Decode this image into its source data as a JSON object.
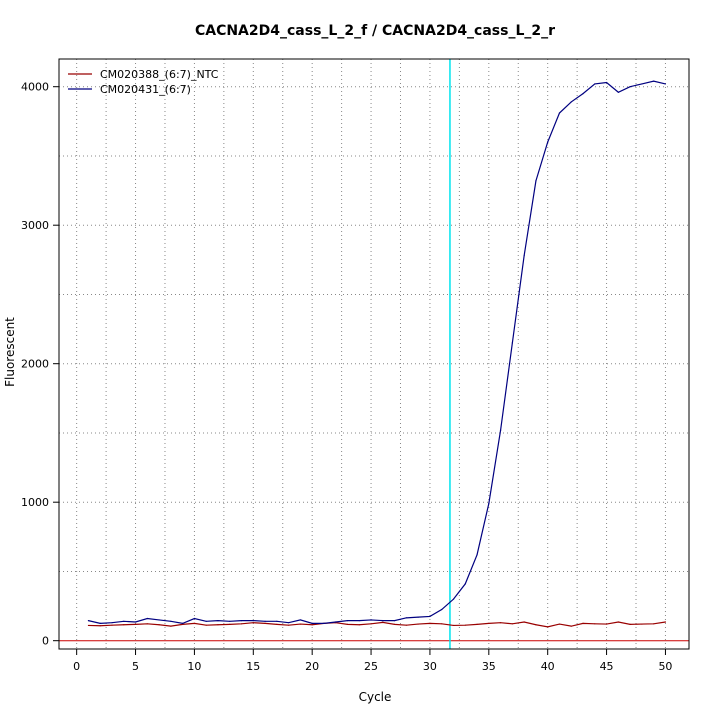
{
  "chart_data": {
    "type": "line",
    "title": "CACNA2D4_cass_L_2_f / CACNA2D4_cass_L_2_r",
    "xlabel": "Cycle",
    "ylabel": "Fluorescent",
    "xlim": [
      -1.5,
      52
    ],
    "ylim": [
      -60,
      4200
    ],
    "xticks": [
      "0",
      "5",
      "10",
      "15",
      "20",
      "25",
      "30",
      "35",
      "40",
      "45",
      "50"
    ],
    "yticks": [
      "0",
      "1000",
      "2000",
      "3000",
      "4000"
    ],
    "grid": true,
    "legend_position": "top-left",
    "threshold_cycle": 31.7,
    "baseline": 0,
    "colors": {
      "threshold": "#00e5ee",
      "baseline": "#cc0000",
      "grid": "#888888"
    },
    "x": [
      1,
      2,
      3,
      4,
      5,
      6,
      7,
      8,
      9,
      10,
      11,
      12,
      13,
      14,
      15,
      16,
      17,
      18,
      19,
      20,
      21,
      22,
      23,
      24,
      25,
      26,
      27,
      28,
      29,
      30,
      31,
      32,
      33,
      34,
      35,
      36,
      37,
      38,
      39,
      40,
      41,
      42,
      43,
      44,
      45,
      46,
      47,
      48,
      49,
      50
    ],
    "series": [
      {
        "name": "CM020388_(6:7)_NTC",
        "color": "#990000",
        "values": [
          110,
          108,
          112,
          115,
          118,
          122,
          115,
          105,
          118,
          125,
          112,
          115,
          118,
          122,
          130,
          125,
          118,
          112,
          120,
          115,
          125,
          130,
          118,
          115,
          122,
          132,
          118,
          112,
          120,
          125,
          122,
          110,
          112,
          118,
          125,
          130,
          122,
          135,
          115,
          100,
          120,
          105,
          125,
          122,
          120,
          135,
          118,
          120,
          122,
          135
        ]
      },
      {
        "name": "CM020431_(6:7)",
        "color": "#000080",
        "values": [
          145,
          125,
          130,
          140,
          135,
          160,
          150,
          140,
          125,
          160,
          140,
          145,
          140,
          145,
          145,
          140,
          140,
          130,
          150,
          125,
          125,
          135,
          145,
          145,
          150,
          145,
          145,
          165,
          170,
          175,
          225,
          300,
          410,
          620,
          990,
          1520,
          2150,
          2780,
          3320,
          3600,
          3810,
          3890,
          3950,
          4020,
          4030,
          3960,
          4000,
          4020,
          4040,
          4020
        ]
      }
    ]
  }
}
